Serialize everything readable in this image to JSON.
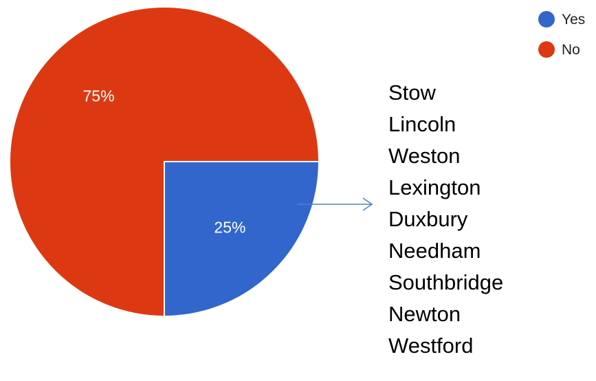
{
  "chart_data": {
    "type": "pie",
    "slices": [
      {
        "label": "Yes",
        "value": 25,
        "display": "25%",
        "color": "#3366cc"
      },
      {
        "label": "No",
        "value": 75,
        "display": "75%",
        "color": "#dc3912"
      }
    ],
    "legend": {
      "position": "top-right",
      "entries": [
        "Yes",
        "No"
      ]
    },
    "annotation": {
      "type": "arrow",
      "from": "Yes",
      "to": "list"
    }
  },
  "towns": [
    "Stow",
    "Lincoln",
    "Weston",
    "Lexington",
    "Duxbury",
    "Needham",
    "Southbridge",
    "Newton",
    "Westford"
  ]
}
